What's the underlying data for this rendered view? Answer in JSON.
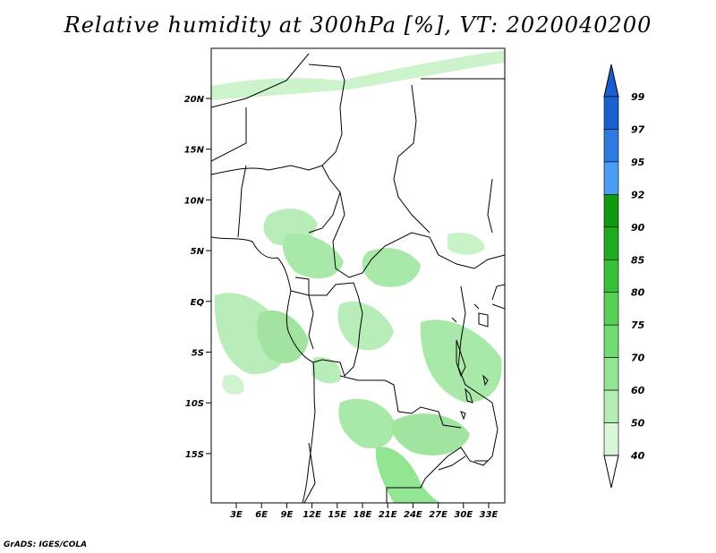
{
  "title": "Relative humidity at 300hPa [%], VT: 2020040200",
  "credit": "GrADS: IGES/COLA",
  "map": {
    "lat_labels": [
      "20N",
      "15N",
      "10N",
      "5N",
      "EQ",
      "5S",
      "10S",
      "15S"
    ],
    "lon_labels": [
      "3E",
      "6E",
      "9E",
      "12E",
      "15E",
      "18E",
      "21E",
      "24E",
      "27E",
      "30E",
      "33E"
    ]
  },
  "colorbar": {
    "levels": [
      "99",
      "97",
      "95",
      "92",
      "90",
      "85",
      "80",
      "75",
      "70",
      "60",
      "50",
      "40"
    ],
    "colors": [
      "#1a5fcf",
      "#2f7ae0",
      "#4a9df0",
      "#119a11",
      "#20aa20",
      "#38c038",
      "#55d055",
      "#72dc72",
      "#92e592",
      "#b4edb4",
      "#d8f6d8",
      "#f0fcf0"
    ]
  }
}
